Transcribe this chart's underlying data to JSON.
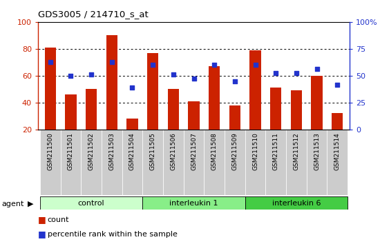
{
  "title": "GDS3005 / 214710_s_at",
  "samples": [
    "GSM211500",
    "GSM211501",
    "GSM211502",
    "GSM211503",
    "GSM211504",
    "GSM211505",
    "GSM211506",
    "GSM211507",
    "GSM211508",
    "GSM211509",
    "GSM211510",
    "GSM211511",
    "GSM211512",
    "GSM211513",
    "GSM211514"
  ],
  "counts": [
    81,
    46,
    50,
    90,
    28,
    77,
    50,
    41,
    67,
    38,
    79,
    51,
    49,
    60,
    32
  ],
  "percentiles": [
    70,
    60,
    61,
    70,
    51,
    68,
    61,
    58,
    68,
    56,
    68,
    62,
    62,
    65,
    53
  ],
  "bar_color": "#cc2200",
  "dot_color": "#2233cc",
  "ylim_left": [
    20,
    100
  ],
  "yticks_left": [
    20,
    40,
    60,
    80,
    100
  ],
  "yticks_right_labels": [
    "0",
    "25",
    "50",
    "75",
    "100%"
  ],
  "yticks_right_vals": [
    20,
    40,
    60,
    80,
    100
  ],
  "groups": [
    {
      "label": "control",
      "start": 0,
      "end": 5,
      "color": "#ccffcc"
    },
    {
      "label": "interleukin 1",
      "start": 5,
      "end": 10,
      "color": "#88ee88"
    },
    {
      "label": "interleukin 6",
      "start": 10,
      "end": 15,
      "color": "#44cc44"
    }
  ],
  "agent_label": "agent",
  "legend_count_label": "count",
  "legend_pct_label": "percentile rank within the sample",
  "bg_color": "#ffffff",
  "left_axis_color": "#cc2200",
  "right_axis_color": "#2233cc",
  "tick_bg_color": "#cccccc"
}
